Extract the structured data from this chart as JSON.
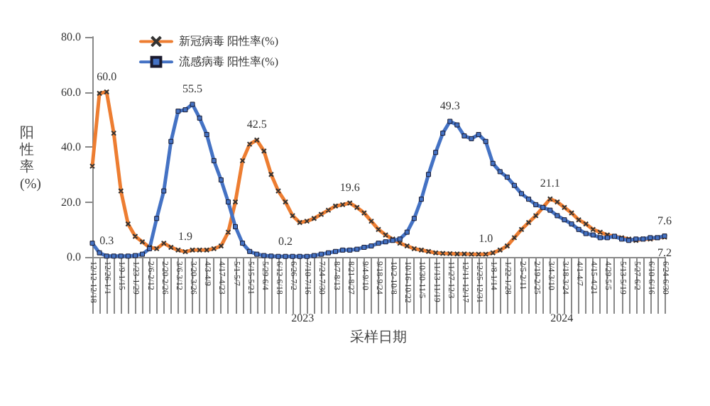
{
  "chart_data": {
    "type": "line",
    "xlabel": "采样日期",
    "ylabel": "阳性率(%)",
    "categories": [
      "12/12-12/18",
      null,
      "12/26-1/1",
      null,
      "1/9-1/15",
      null,
      "1/23-1/29",
      null,
      "2/6-2/12",
      null,
      "2/20-2/26",
      null,
      "3/6-3/12",
      null,
      "3/20-3/26",
      null,
      "4/3-4/9",
      null,
      "4/17-4/23",
      null,
      "5/1-5/7",
      null,
      "5/15-5/21",
      null,
      "5/29-6/4",
      null,
      "6/12-6/18",
      null,
      "6/26-7/2",
      null,
      "7/10-7/16",
      null,
      "7/24-7/30",
      null,
      "8/7-8/13",
      null,
      "8/21-8/27",
      null,
      "9/4-9/10",
      null,
      "9/18-9/24",
      null,
      "10/2-10/8",
      null,
      "10/16-10/22",
      null,
      "10/30-11/5",
      null,
      "11/13-11/19",
      null,
      "11/27-12/3",
      null,
      "12/11-12/17",
      null,
      "12/25-12/31",
      null,
      "1/8-1/14",
      null,
      "1/22-1/28",
      null,
      "2/5-2/11",
      null,
      "2/19-2/25",
      null,
      "3/4-3/10",
      null,
      "3/18-3/24",
      null,
      "4/1-4/7",
      null,
      "4/15-4/21",
      null,
      "4/29-5/5",
      null,
      "5/13-5/19",
      null,
      "5/27-6/2",
      null,
      "6/10-6/16",
      null,
      "6/24-6/30"
    ],
    "series": [
      {
        "name": "新冠病毒 阳性率(%)",
        "color": "#ed7d31",
        "marker": "cross",
        "values": [
          33,
          59.5,
          60,
          45,
          24,
          12,
          7.5,
          5.5,
          3.5,
          3,
          5,
          3.5,
          2.5,
          1.9,
          2.5,
          2.5,
          2.5,
          3,
          4,
          9,
          20,
          35,
          41,
          42.5,
          38.5,
          30,
          24,
          20,
          15,
          12.5,
          13,
          14,
          15.5,
          17,
          18.5,
          19,
          19.6,
          18,
          16,
          13,
          10,
          8,
          6.5,
          5,
          4,
          3,
          2.5,
          2,
          1.5,
          1.3,
          1.2,
          1.1,
          1.1,
          1,
          1,
          1,
          1.5,
          2.5,
          4,
          7,
          10,
          12.5,
          15,
          18,
          21.1,
          20,
          18,
          16,
          13.5,
          12,
          10,
          9,
          8,
          7.5,
          7,
          6.5,
          6,
          6.5,
          6.5,
          7,
          7.2
        ],
        "value_labels": [
          null,
          null,
          "60.0",
          null,
          null,
          null,
          null,
          null,
          null,
          null,
          null,
          null,
          null,
          "1.9",
          null,
          null,
          null,
          null,
          null,
          null,
          null,
          null,
          null,
          "42.5",
          null,
          null,
          null,
          null,
          null,
          null,
          null,
          null,
          null,
          null,
          null,
          null,
          "19.6",
          null,
          null,
          null,
          null,
          null,
          null,
          null,
          null,
          null,
          null,
          null,
          null,
          null,
          null,
          null,
          null,
          null,
          null,
          "1.0",
          null,
          null,
          null,
          null,
          null,
          null,
          null,
          null,
          "21.1",
          null,
          null,
          null,
          null,
          null,
          null,
          null,
          null,
          null,
          null,
          null,
          null,
          null,
          null,
          null,
          "7.2"
        ]
      },
      {
        "name": "流感病毒 阳性率(%)",
        "color": "#4472c4",
        "marker": "square",
        "values": [
          5,
          1.5,
          0.3,
          0.3,
          0.3,
          0.3,
          0.5,
          1,
          3,
          14,
          24,
          42,
          53,
          53.5,
          55.5,
          50.5,
          44.5,
          35,
          28,
          20,
          11,
          5,
          2,
          1,
          0.5,
          0.3,
          0.2,
          0.2,
          0.2,
          0.2,
          0.2,
          0.5,
          1,
          1.5,
          2,
          2.5,
          2.5,
          2.8,
          3.5,
          4,
          5,
          5.5,
          6,
          6.5,
          9,
          14,
          21,
          30,
          38,
          45,
          49.3,
          48,
          44,
          43,
          44.5,
          42,
          34,
          31,
          29,
          26,
          23,
          21,
          19,
          18,
          17,
          15,
          13.5,
          12,
          10,
          8.5,
          8,
          7,
          7,
          7.5,
          6.5,
          6,
          6.5,
          6.5,
          7,
          7,
          7.6
        ],
        "value_labels": [
          null,
          null,
          "0.3",
          null,
          null,
          null,
          null,
          null,
          null,
          null,
          null,
          null,
          null,
          null,
          "55.5",
          null,
          null,
          null,
          null,
          null,
          null,
          null,
          null,
          null,
          null,
          null,
          null,
          "0.2",
          null,
          null,
          null,
          null,
          null,
          null,
          null,
          null,
          null,
          null,
          null,
          null,
          null,
          null,
          null,
          null,
          null,
          null,
          null,
          null,
          null,
          null,
          "49.3",
          null,
          null,
          null,
          null,
          null,
          null,
          null,
          null,
          null,
          null,
          null,
          null,
          null,
          null,
          null,
          null,
          null,
          null,
          null,
          null,
          null,
          null,
          null,
          null,
          null,
          null,
          null,
          null,
          null,
          "7.6"
        ]
      }
    ],
    "ylim": [
      0,
      80
    ],
    "yticks": [
      {
        "value": 0,
        "label": "0.0"
      },
      {
        "value": 20,
        "label": "20.0"
      },
      {
        "value": 40,
        "label": "40.0"
      },
      {
        "value": 60,
        "label": "60.0"
      },
      {
        "value": 80,
        "label": "80.0"
      }
    ],
    "grid": false,
    "legend": "top left",
    "line_style": "solid",
    "annotations": [
      "2023",
      "2024"
    ]
  }
}
